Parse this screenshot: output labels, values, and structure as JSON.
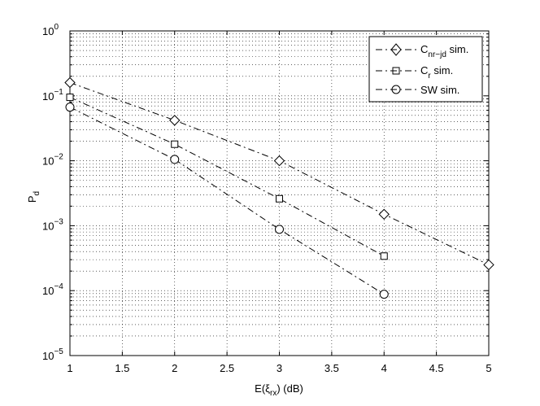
{
  "chart_data": {
    "type": "line",
    "title": "",
    "xlabel": "E(ξ_rx) (dB)",
    "ylabel": "P_d",
    "xlim": [
      1,
      5
    ],
    "ylim": [
      1e-05,
      1
    ],
    "yscale": "log",
    "grid": "dotted, major and minor",
    "legend_position": "top-right",
    "x_ticks": [
      1,
      1.5,
      2,
      2.5,
      3,
      3.5,
      4,
      4.5,
      5
    ],
    "x_tick_labels": [
      "1",
      "1.5",
      "2",
      "2.5",
      "3",
      "3.5",
      "4",
      "4.5",
      "5"
    ],
    "y_ticks": [
      {
        "value": 1e-05,
        "mantissa": "10",
        "exp": "−5"
      },
      {
        "value": 0.0001,
        "mantissa": "10",
        "exp": "−4"
      },
      {
        "value": 0.001,
        "mantissa": "10",
        "exp": "−3"
      },
      {
        "value": 0.01,
        "mantissa": "10",
        "exp": "−2"
      },
      {
        "value": 0.1,
        "mantissa": "10",
        "exp": "−1"
      },
      {
        "value": 1,
        "mantissa": "10",
        "exp": "0"
      }
    ],
    "series": [
      {
        "name": "C_nr−jd sim.",
        "marker": "diamond",
        "dash": "8,4,2,4",
        "x": [
          1,
          2,
          3,
          4,
          5
        ],
        "y": [
          0.16,
          0.042,
          0.01,
          0.0015,
          0.00025
        ]
      },
      {
        "name": "C_r sim.",
        "marker": "square",
        "dash": "8,4,2,4",
        "x": [
          1,
          2,
          3,
          4
        ],
        "y": [
          0.095,
          0.018,
          0.0026,
          0.00034
        ]
      },
      {
        "name": "SW sim.",
        "marker": "circle",
        "dash": "8,4,2,4",
        "x": [
          1,
          2,
          3,
          4
        ],
        "y": [
          0.067,
          0.0105,
          0.00088,
          8.8e-05
        ]
      }
    ]
  },
  "legend": {
    "entries": [
      {
        "main": "C",
        "sub": "nr−jd",
        "suffix": " sim."
      },
      {
        "main": "C",
        "sub": "r",
        "suffix": " sim."
      },
      {
        "main": "SW sim.",
        "sub": "",
        "suffix": ""
      }
    ]
  },
  "axes": {
    "x_label": {
      "pre": "E(ξ",
      "sub": "rx",
      "post": ") (dB)"
    },
    "y_label": {
      "main": "P",
      "sub": "d"
    }
  }
}
